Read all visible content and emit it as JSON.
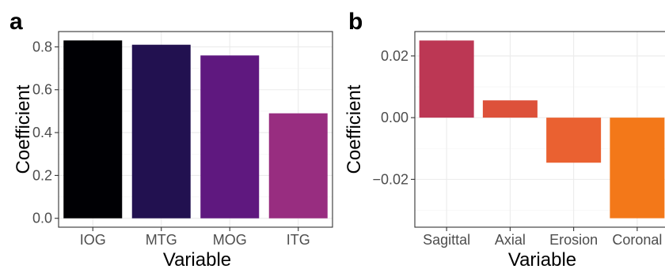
{
  "chart_data": [
    {
      "panel": "a",
      "type": "bar",
      "title": "",
      "xlabel": "Variable",
      "ylabel": "Coefficient",
      "categories": [
        "IOG",
        "MTG",
        "MOG",
        "ITG"
      ],
      "values": [
        0.83,
        0.81,
        0.76,
        0.49
      ],
      "colors": [
        "#000004",
        "#221150",
        "#5f187f",
        "#982d80"
      ],
      "ylim": [
        -0.0415,
        0.8715
      ],
      "yticks": [
        0.0,
        0.2,
        0.4,
        0.6,
        0.8
      ],
      "ytick_labels": [
        "0.0",
        "0.2",
        "0.4",
        "0.6",
        "0.8"
      ],
      "grid": true
    },
    {
      "panel": "b",
      "type": "bar",
      "title": "",
      "xlabel": "Variable",
      "ylabel": "Coefficient",
      "categories": [
        "Sagittal",
        "Axial",
        "Erosion",
        "Coronal"
      ],
      "values": [
        0.025,
        0.0056,
        -0.0146,
        -0.0326
      ],
      "colors": [
        "#bc3754",
        "#dd513a",
        "#ea6131",
        "#f37819"
      ],
      "ylim": [
        -0.0355,
        0.0279
      ],
      "yticks": [
        -0.02,
        0.0,
        0.02
      ],
      "ytick_labels": [
        "−0.02",
        "0.00",
        "0.02"
      ],
      "grid": true
    }
  ]
}
